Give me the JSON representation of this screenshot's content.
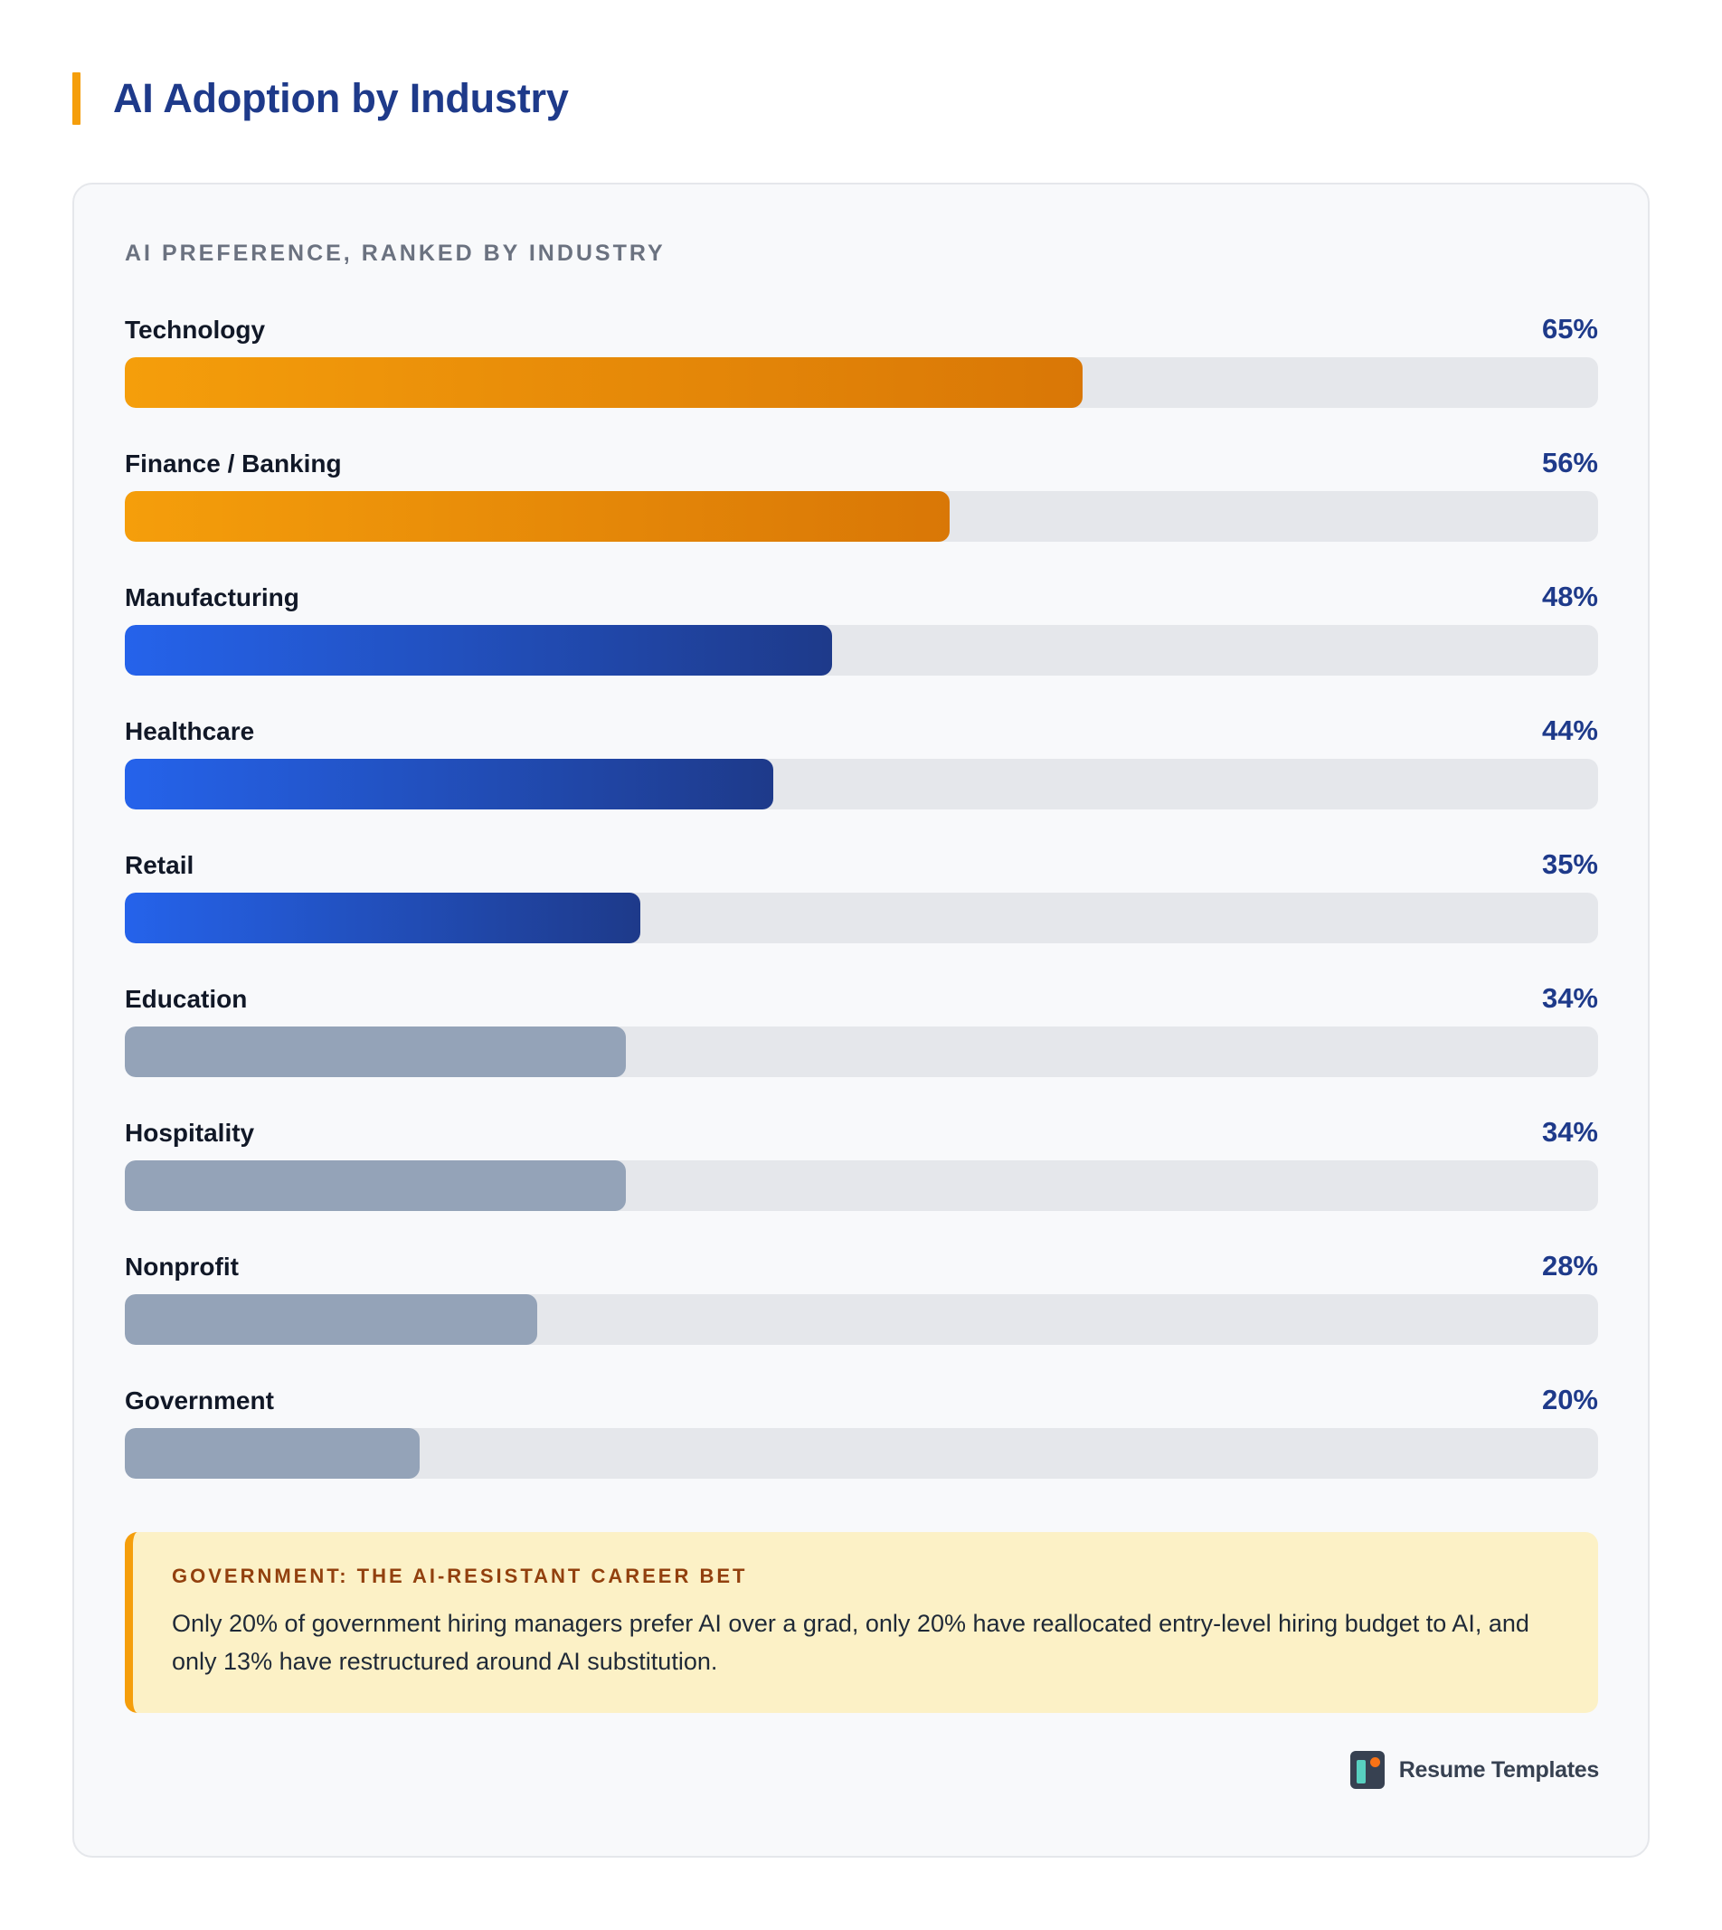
{
  "header": {
    "title": "AI Adoption by Industry"
  },
  "card": {
    "subtitle": "AI PREFERENCE, RANKED BY INDUSTRY"
  },
  "chart_data": {
    "type": "bar",
    "orientation": "horizontal",
    "title": "AI PREFERENCE, RANKED BY INDUSTRY",
    "categories": [
      "Technology",
      "Finance / Banking",
      "Manufacturing",
      "Healthcare",
      "Retail",
      "Education",
      "Hospitality",
      "Nonprofit",
      "Government"
    ],
    "values": [
      65,
      56,
      48,
      44,
      35,
      34,
      34,
      28,
      20
    ],
    "value_labels": [
      "65%",
      "56%",
      "48%",
      "44%",
      "35%",
      "34%",
      "34%",
      "28%",
      "20%"
    ],
    "unit": "%",
    "xlim": [
      0,
      100
    ],
    "tiers": [
      "orange",
      "orange",
      "blue",
      "blue",
      "blue",
      "gray",
      "gray",
      "gray",
      "gray"
    ],
    "colors": {
      "orange": [
        "#f59e0b",
        "#d97706"
      ],
      "blue": [
        "#2563eb",
        "#1e3a8a"
      ],
      "gray": "#94a3b8",
      "track": "#e5e7eb"
    },
    "grid": false
  },
  "callout": {
    "title": "GOVERNMENT: THE AI-RESISTANT CAREER BET",
    "text": "Only 20% of government hiring managers prefer AI over a grad, only 20% have reallocated entry-level hiring budget to AI, and only 13% have restructured around AI substitution."
  },
  "brand": {
    "name": "Resume Templates",
    "icon": "resume-templates-logo-icon"
  },
  "colors": {
    "accent": "#f59e0b",
    "title": "#1e3a8a",
    "callout_bg": "#fcf1c6",
    "callout_title": "#92400e"
  }
}
